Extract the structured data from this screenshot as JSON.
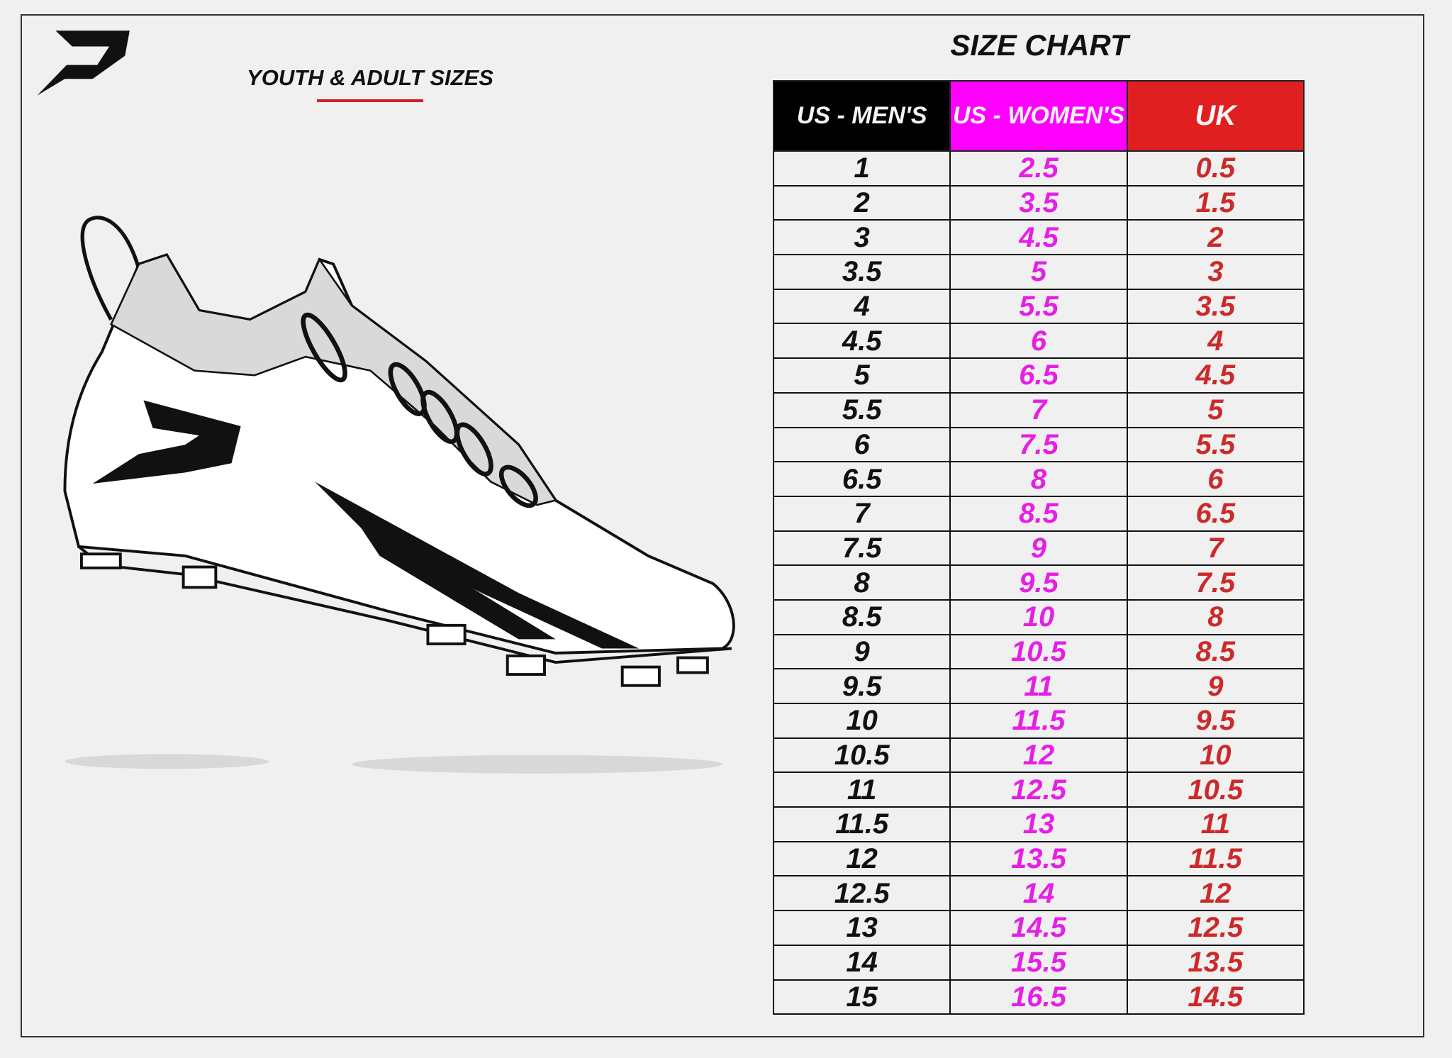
{
  "header": {
    "title": "SIZE CHART",
    "subtitle": "YOUTH & ADULT SIZES",
    "logo": "P"
  },
  "colors": {
    "mens": "#000000",
    "womens": "#ff00ff",
    "uk": "#e02020"
  },
  "table": {
    "columns": [
      "US - MEN'S",
      "US - WOMEN'S",
      "UK"
    ],
    "rows": [
      [
        "1",
        "2.5",
        "0.5"
      ],
      [
        "2",
        "3.5",
        "1.5"
      ],
      [
        "3",
        "4.5",
        "2"
      ],
      [
        "3.5",
        "5",
        "3"
      ],
      [
        "4",
        "5.5",
        "3.5"
      ],
      [
        "4.5",
        "6",
        "4"
      ],
      [
        "5",
        "6.5",
        "4.5"
      ],
      [
        "5.5",
        "7",
        "5"
      ],
      [
        "6",
        "7.5",
        "5.5"
      ],
      [
        "6.5",
        "8",
        "6"
      ],
      [
        "7",
        "8.5",
        "6.5"
      ],
      [
        "7.5",
        "9",
        "7"
      ],
      [
        "8",
        "9.5",
        "7.5"
      ],
      [
        "8.5",
        "10",
        "8"
      ],
      [
        "9",
        "10.5",
        "8.5"
      ],
      [
        "9.5",
        "11",
        "9"
      ],
      [
        "10",
        "11.5",
        "9.5"
      ],
      [
        "10.5",
        "12",
        "10"
      ],
      [
        "11",
        "12.5",
        "10.5"
      ],
      [
        "11.5",
        "13",
        "11"
      ],
      [
        "12",
        "13.5",
        "11.5"
      ],
      [
        "12.5",
        "14",
        "12"
      ],
      [
        "13",
        "14.5",
        "12.5"
      ],
      [
        "14",
        "15.5",
        "13.5"
      ],
      [
        "15",
        "16.5",
        "14.5"
      ]
    ]
  }
}
